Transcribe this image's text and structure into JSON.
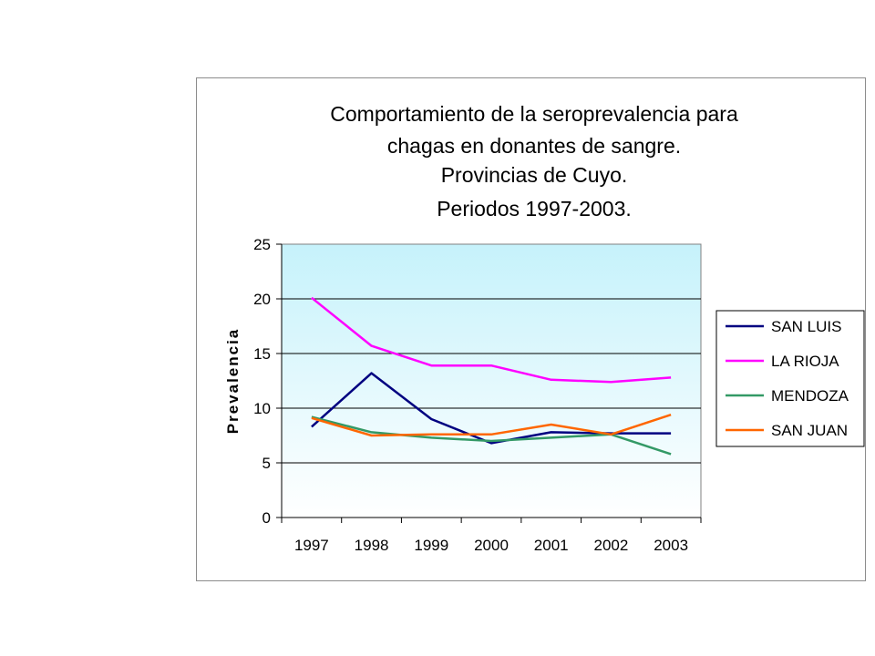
{
  "chart_data": {
    "type": "line",
    "title": [
      "Comportamiento de la seroprevalencia para",
      "chagas en donantes de sangre.",
      "Provincias de Cuyo.",
      "Periodos 1997-2003."
    ],
    "xlabel": "",
    "ylabel": "Prevalencia",
    "x": [
      "1997",
      "1998",
      "1999",
      "2000",
      "2001",
      "2002",
      "2003"
    ],
    "ylim": [
      0,
      25
    ],
    "yticks": [
      0,
      5,
      10,
      15,
      20,
      25
    ],
    "grid": true,
    "legend_position": "right",
    "plot_background": "gradient cyan-to-white",
    "series": [
      {
        "name": "SAN LUIS",
        "color": "#000080",
        "values": [
          8.3,
          13.2,
          9.0,
          6.8,
          7.8,
          7.7,
          7.7
        ]
      },
      {
        "name": "LA RIOJA",
        "color": "#ff00ff",
        "values": [
          20.1,
          15.7,
          13.9,
          13.9,
          12.6,
          12.4,
          12.8
        ]
      },
      {
        "name": "MENDOZA",
        "color": "#339966",
        "values": [
          9.2,
          7.8,
          7.3,
          7.0,
          7.3,
          7.6,
          5.8
        ]
      },
      {
        "name": "SAN JUAN",
        "color": "#ff6600",
        "values": [
          9.1,
          7.5,
          7.6,
          7.6,
          8.5,
          7.6,
          9.4
        ]
      }
    ]
  }
}
